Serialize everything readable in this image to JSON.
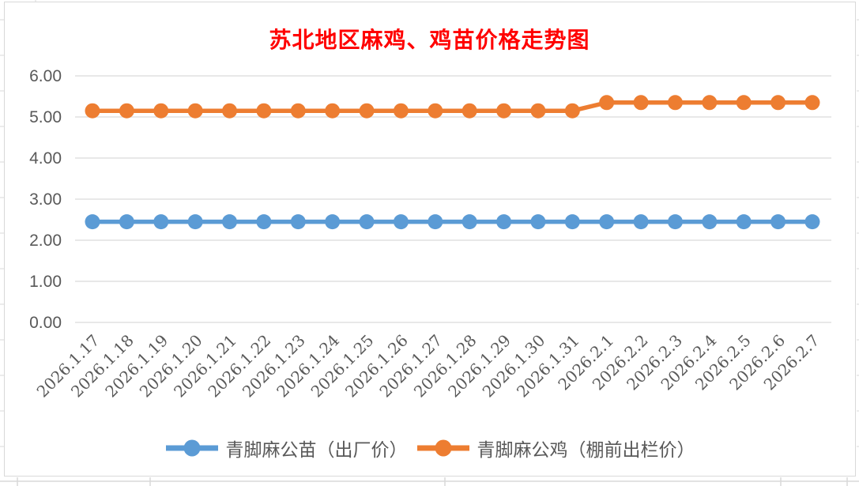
{
  "title": {
    "text": "苏北地区麻鸡、鸡苗价格走势图",
    "color": "#FF0000"
  },
  "axis": {
    "label_color": "#595959",
    "grid_color": "#D9D9D9",
    "frame_color": "#D9D9D9"
  },
  "chart_data": {
    "type": "line",
    "title": "苏北地区麻鸡、鸡苗价格走势图",
    "x": [
      "2026.1.17",
      "2026.1.18",
      "2026.1.19",
      "2026.1.20",
      "2026.1.21",
      "2026.1.22",
      "2026.1.23",
      "2026.1.24",
      "2026.1.25",
      "2026.1.26",
      "2026.1.27",
      "2026.1.28",
      "2026.1.29",
      "2026.1.30",
      "2026.1.31",
      "2026.2.1",
      "2026.2.2",
      "2026.2.3",
      "2026.2.4",
      "2026.2.5",
      "2026.2.6",
      "2026.2.7"
    ],
    "series": [
      {
        "name": "青脚麻公苗（出厂价）",
        "color": "#5B9BD5",
        "values": [
          2.45,
          2.45,
          2.45,
          2.45,
          2.45,
          2.45,
          2.45,
          2.45,
          2.45,
          2.45,
          2.45,
          2.45,
          2.45,
          2.45,
          2.45,
          2.45,
          2.45,
          2.45,
          2.45,
          2.45,
          2.45,
          2.45
        ]
      },
      {
        "name": "青脚麻公鸡（棚前出栏价）",
        "color": "#ED7D31",
        "values": [
          5.15,
          5.15,
          5.15,
          5.15,
          5.15,
          5.15,
          5.15,
          5.15,
          5.15,
          5.15,
          5.15,
          5.15,
          5.15,
          5.15,
          5.15,
          5.35,
          5.35,
          5.35,
          5.35,
          5.35,
          5.35,
          5.35
        ]
      }
    ],
    "xlabel": "",
    "ylabel": "",
    "ylim": [
      0,
      6
    ],
    "ytick_step": 1,
    "ytick_labels": [
      "0.00",
      "1.00",
      "2.00",
      "3.00",
      "4.00",
      "5.00",
      "6.00"
    ],
    "grid": true,
    "legend_position": "bottom",
    "marker": "circle"
  }
}
